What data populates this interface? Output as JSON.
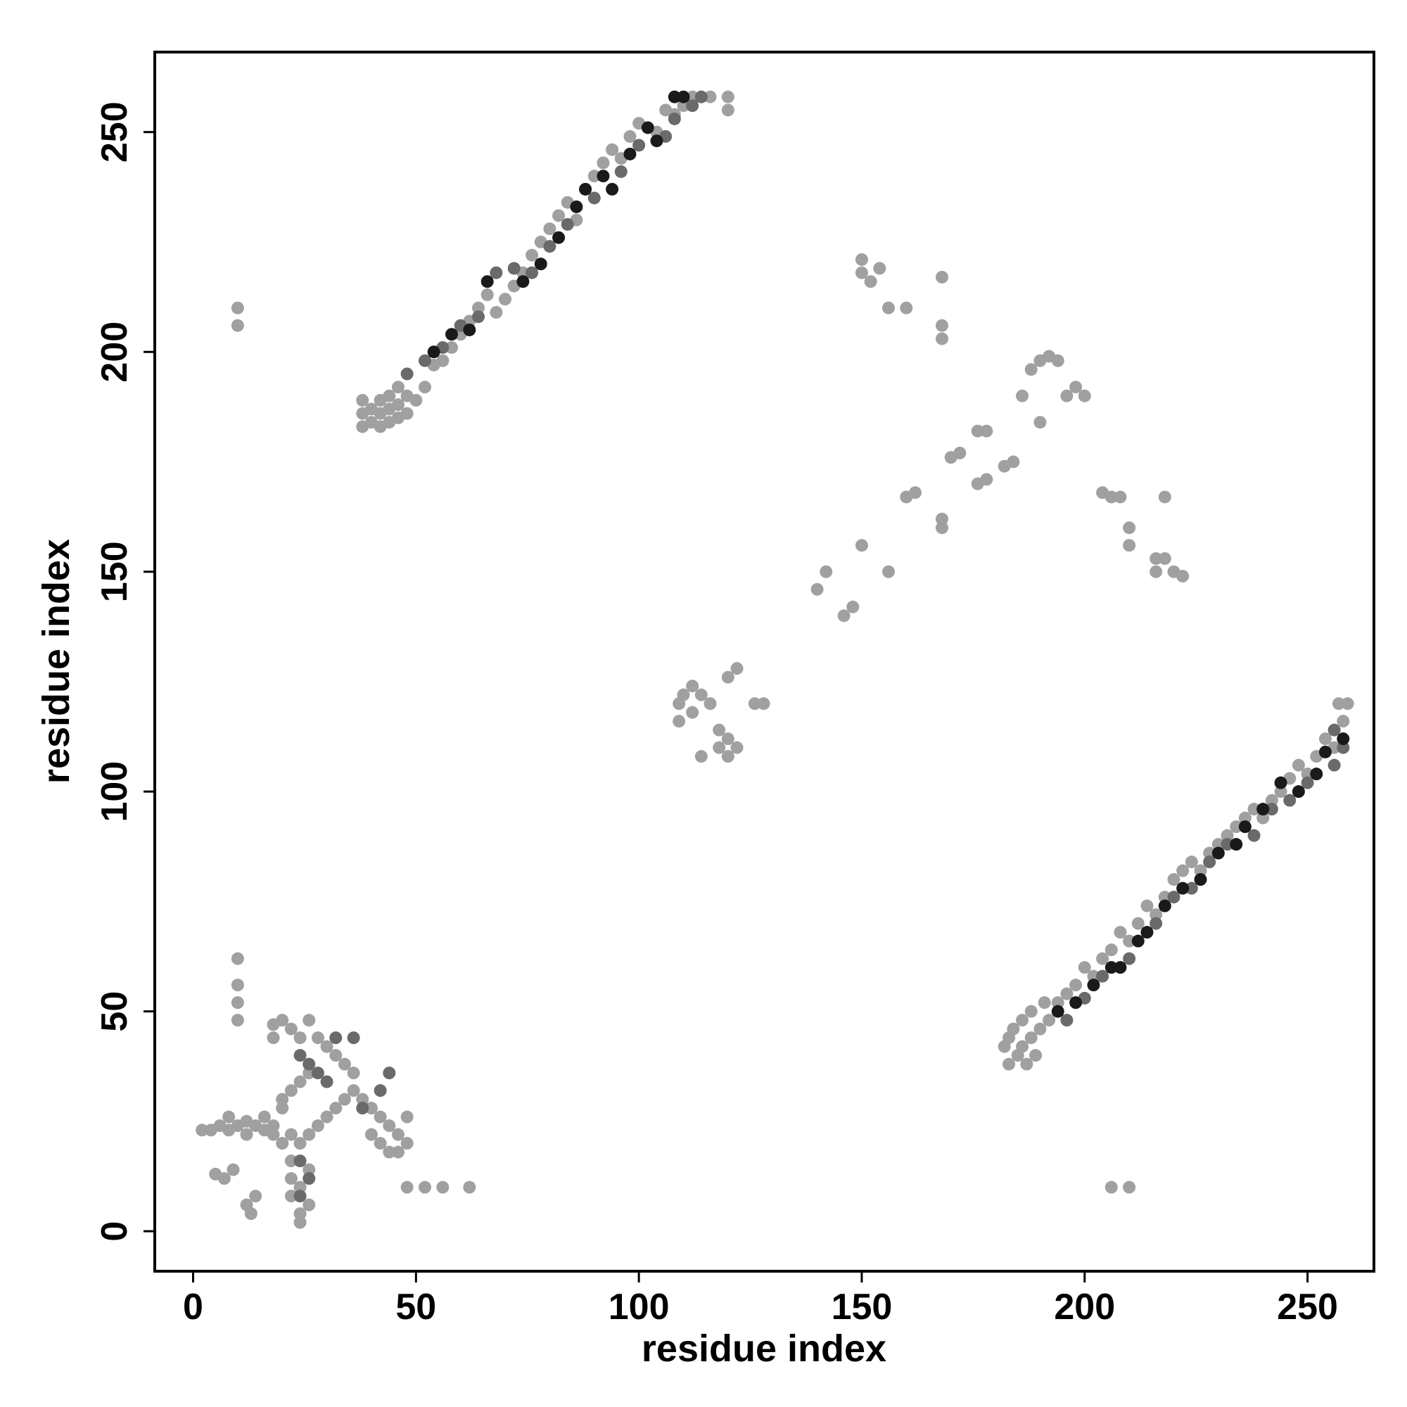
{
  "chart_data": {
    "type": "scatter",
    "x_label": "residue index",
    "y_label": "residue index",
    "xlim": [
      -8.6,
      264.9
    ],
    "ylim": [
      -9.1,
      268.2
    ],
    "xticks": [
      0,
      50,
      100,
      150,
      200,
      250
    ],
    "yticks": [
      0,
      50,
      100,
      150,
      200,
      250
    ],
    "grid": false,
    "series": [
      {
        "color": "#a0a0a0",
        "x": [
          38,
          38,
          38,
          40,
          40,
          42,
          42,
          42,
          44,
          44,
          44,
          46,
          46,
          46,
          48,
          48,
          50,
          52,
          54,
          56,
          58,
          60,
          62,
          64,
          66,
          68,
          70,
          72,
          74,
          76,
          78,
          80,
          82,
          84,
          86,
          88,
          90,
          92,
          94,
          96,
          98,
          100,
          104,
          106,
          108,
          110,
          112,
          116,
          120,
          120,
          182,
          183,
          183,
          184,
          185,
          186,
          186,
          187,
          188,
          188,
          189,
          190,
          191,
          192,
          194,
          196,
          198,
          200,
          202,
          204,
          206,
          208,
          210,
          212,
          214,
          216,
          218,
          220,
          222,
          224,
          226,
          228,
          230,
          232,
          234,
          236,
          238,
          240,
          242,
          244,
          246,
          248,
          250,
          252,
          254,
          256,
          257,
          259,
          258,
          2,
          4,
          6,
          8,
          10,
          12,
          14,
          16,
          18,
          8,
          12,
          16,
          5,
          7,
          9,
          12,
          13,
          14,
          10,
          10,
          10,
          10,
          18,
          18,
          20,
          22,
          24,
          26,
          28,
          30,
          32,
          34,
          36,
          20,
          22,
          24,
          26,
          20,
          18,
          20,
          22,
          24,
          26,
          28,
          30,
          32,
          34,
          36,
          38,
          40,
          42,
          44,
          46,
          48,
          48,
          40,
          42,
          44,
          46,
          22,
          22,
          24,
          24,
          22,
          26,
          24,
          26,
          48,
          52,
          56,
          62,
          206,
          210,
          10,
          10,
          109,
          109,
          110,
          112,
          112,
          114,
          116,
          114,
          118,
          120,
          120,
          122,
          120,
          122,
          126,
          128,
          118,
          140,
          142,
          146,
          148,
          150,
          156,
          150,
          150,
          152,
          154,
          160,
          156,
          168,
          168,
          168,
          160,
          162,
          168,
          168,
          170,
          172,
          176,
          178,
          176,
          178,
          182,
          184,
          186,
          188,
          190,
          190,
          192,
          194,
          196,
          198,
          200,
          204,
          206,
          208,
          210,
          210,
          216,
          216,
          218,
          218,
          220,
          222
        ],
        "values": [
          183,
          186,
          189,
          184,
          187,
          183,
          186,
          189,
          184,
          187,
          190,
          185,
          188,
          192,
          186,
          190,
          189,
          192,
          197,
          198,
          201,
          204,
          207,
          210,
          213,
          209,
          212,
          215,
          218,
          222,
          225,
          228,
          231,
          234,
          230,
          237,
          240,
          243,
          246,
          244,
          249,
          252,
          250,
          255,
          254,
          256,
          258,
          258,
          258,
          255,
          42,
          38,
          44,
          46,
          40,
          48,
          42,
          38,
          44,
          50,
          40,
          46,
          52,
          48,
          52,
          54,
          56,
          60,
          58,
          62,
          64,
          68,
          66,
          70,
          74,
          72,
          76,
          80,
          82,
          84,
          82,
          86,
          88,
          90,
          92,
          94,
          96,
          94,
          98,
          100,
          103,
          106,
          104,
          108,
          112,
          110,
          120,
          120,
          116,
          23,
          23,
          24,
          23,
          24,
          25,
          24,
          23,
          22,
          26,
          22,
          26,
          13,
          12,
          14,
          6,
          4,
          8,
          62,
          56,
          52,
          48,
          47,
          44,
          48,
          46,
          44,
          48,
          44,
          42,
          40,
          38,
          36,
          30,
          32,
          34,
          36,
          28,
          24,
          20,
          22,
          20,
          22,
          24,
          26,
          28,
          30,
          32,
          30,
          28,
          26,
          24,
          22,
          20,
          26,
          22,
          20,
          18,
          18,
          12,
          8,
          4,
          2,
          16,
          14,
          10,
          6,
          10,
          10,
          10,
          10,
          10,
          10,
          210,
          206,
          116,
          120,
          122,
          118,
          124,
          122,
          120,
          108,
          110,
          112,
          108,
          110,
          126,
          128,
          120,
          120,
          114,
          146,
          150,
          140,
          142,
          156,
          150,
          221,
          218,
          216,
          219,
          210,
          210,
          217,
          206,
          203,
          167,
          168,
          160,
          162,
          176,
          177,
          182,
          182,
          170,
          171,
          174,
          175,
          190,
          196,
          184,
          198,
          199,
          198,
          190,
          192,
          190,
          168,
          167,
          167,
          160,
          156,
          153,
          150,
          167,
          153,
          150,
          149
        ]
      },
      {
        "color": "#6a6a6a",
        "x": [
          48,
          52,
          56,
          60,
          64,
          68,
          72,
          76,
          80,
          84,
          90,
          96,
          100,
          106,
          108,
          112,
          114,
          196,
          200,
          204,
          210,
          216,
          220,
          224,
          228,
          232,
          238,
          242,
          246,
          250,
          256,
          258,
          256,
          24,
          26,
          28,
          30,
          32,
          36,
          38,
          42,
          44,
          24,
          26,
          24
        ],
        "values": [
          195,
          198,
          201,
          206,
          208,
          218,
          219,
          218,
          224,
          229,
          235,
          241,
          247,
          249,
          253,
          256,
          258,
          48,
          53,
          58,
          62,
          70,
          76,
          78,
          84,
          88,
          90,
          96,
          98,
          102,
          106,
          110,
          114,
          40,
          38,
          36,
          34,
          44,
          44,
          28,
          32,
          36,
          16,
          12,
          8
        ]
      },
      {
        "color": "#1a1a1a",
        "x": [
          54,
          58,
          62,
          66,
          74,
          78,
          82,
          86,
          88,
          92,
          94,
          98,
          102,
          104,
          108,
          110,
          194,
          198,
          202,
          206,
          208,
          212,
          214,
          218,
          222,
          226,
          230,
          234,
          236,
          240,
          244,
          248,
          252,
          254,
          258
        ],
        "values": [
          200,
          204,
          205,
          216,
          216,
          220,
          226,
          233,
          237,
          240,
          237,
          245,
          251,
          248,
          258,
          258,
          50,
          52,
          56,
          60,
          60,
          66,
          68,
          74,
          78,
          80,
          86,
          88,
          92,
          96,
          102,
          100,
          104,
          109,
          112
        ]
      }
    ]
  }
}
